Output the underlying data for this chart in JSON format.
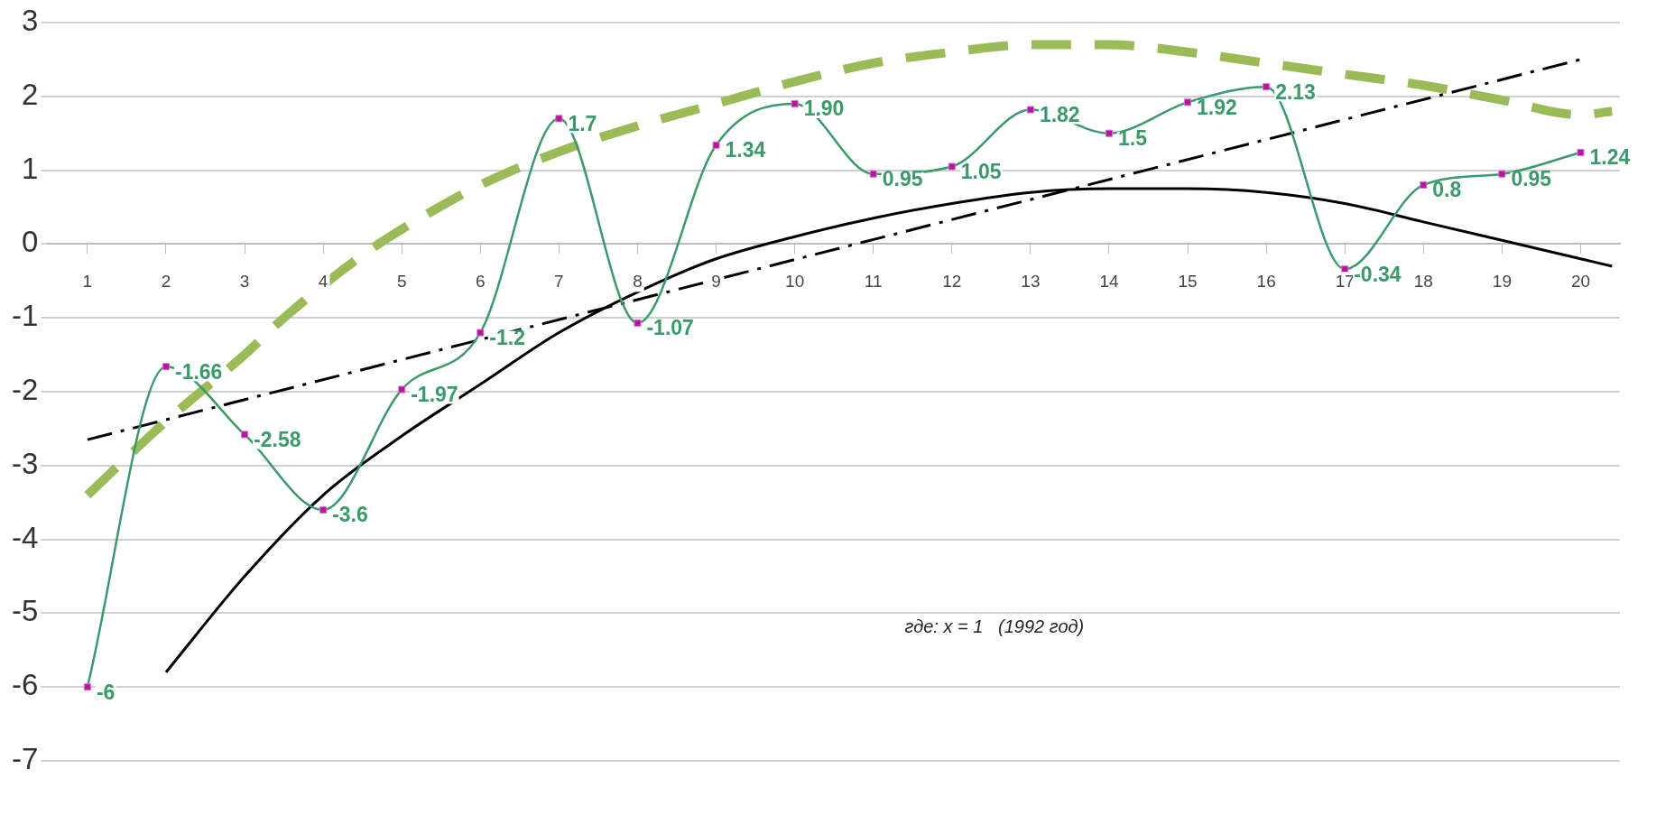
{
  "chart_data": {
    "type": "line",
    "xlim": [
      0.5,
      20.5
    ],
    "xticks": [
      1,
      2,
      3,
      4,
      5,
      6,
      7,
      8,
      9,
      10,
      11,
      12,
      13,
      14,
      15,
      16,
      17,
      18,
      19,
      20
    ],
    "ylim": [
      -7,
      3
    ],
    "yticks": [
      -7,
      -6,
      -5,
      -4,
      -3,
      -2,
      -1,
      0,
      1,
      2,
      3
    ],
    "grid": "y",
    "legend": false,
    "series": [
      {
        "color": "#9bbb59",
        "marker": "none",
        "line_style": "dashed",
        "x": [
          1,
          2,
          3,
          3.5,
          4.5,
          5,
          6,
          7,
          8,
          9,
          10,
          11,
          12,
          13,
          14,
          15,
          16,
          17,
          18,
          19,
          20,
          20.4
        ],
        "values": [
          -3.4,
          -2.4,
          -1.5,
          -1.0,
          -0.15,
          0.2,
          0.8,
          1.25,
          1.6,
          1.9,
          2.2,
          2.45,
          2.6,
          2.7,
          2.7,
          2.6,
          2.45,
          2.3,
          2.15,
          1.95,
          1.75,
          1.8
        ]
      },
      {
        "color": "#000000",
        "marker": "none",
        "line_style": "dashed",
        "x": [
          1,
          20
        ],
        "values": [
          -2.65,
          2.5
        ]
      },
      {
        "color": "#000000",
        "marker": "none",
        "line_style": "solid",
        "x": [
          2,
          3,
          4,
          5,
          6,
          7,
          8,
          9,
          10,
          11,
          12,
          13,
          14,
          15,
          16,
          17,
          18,
          19,
          20,
          20.4
        ],
        "values": [
          -5.8,
          -4.5,
          -3.4,
          -2.6,
          -1.9,
          -1.2,
          -0.65,
          -0.2,
          0.1,
          0.35,
          0.55,
          0.7,
          0.75,
          0.75,
          0.7,
          0.55,
          0.3,
          0.05,
          -0.2,
          -0.3
        ]
      },
      {
        "color": "#3a9a6a",
        "marker": "square",
        "line_style": "solid",
        "x": [
          1,
          2,
          3,
          4,
          5,
          6,
          7,
          8,
          9,
          10,
          11,
          12,
          13,
          14,
          15,
          16,
          17,
          18,
          19,
          20
        ],
        "values": [
          -6,
          -1.66,
          -2.58,
          -3.6,
          -1.97,
          -1.2,
          1.7,
          -1.07,
          1.34,
          1.9,
          0.95,
          1.05,
          1.82,
          1.5,
          1.92,
          2.13,
          -0.34,
          0.8,
          0.95,
          1.24
        ],
        "value_labels": [
          "-6",
          "-1.66",
          "-2.58",
          "-3.6",
          "-1.97",
          "-1.2",
          "1.7",
          "-1.07",
          "1.34",
          "1.90",
          "0.95",
          "1.05",
          "1.82",
          "1.5",
          "1.92",
          "2.13",
          "-0.34",
          "0.8",
          "0.95",
          "1.24"
        ]
      }
    ],
    "annotations": [
      "где: x = 1   (1992 год)"
    ]
  }
}
